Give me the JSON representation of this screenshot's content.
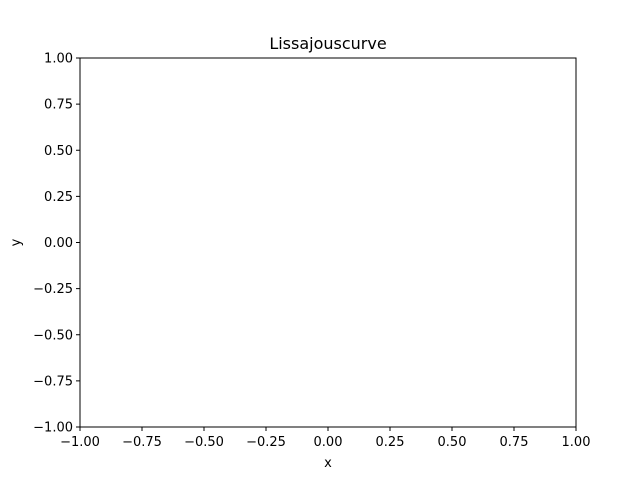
{
  "chart_data": {
    "type": "line",
    "title": "Lissajouscurve",
    "xlabel": "x",
    "ylabel": "y",
    "xlim": [
      -1.0,
      1.0
    ],
    "ylim": [
      -1.0,
      1.0
    ],
    "xticks": [
      -1.0,
      -0.75,
      -0.5,
      -0.25,
      0.0,
      0.25,
      0.5,
      0.75,
      1.0
    ],
    "yticks": [
      -1.0,
      -0.75,
      -0.5,
      -0.25,
      0.0,
      0.25,
      0.5,
      0.75,
      1.0
    ],
    "xtick_labels": [
      "−1.00",
      "−0.75",
      "−0.50",
      "−0.25",
      "0.00",
      "0.25",
      "0.50",
      "0.75",
      "1.00"
    ],
    "ytick_labels": [
      "−1.00",
      "−0.75",
      "−0.50",
      "−0.25",
      "0.00",
      "0.25",
      "0.50",
      "0.75",
      "1.00"
    ],
    "grid": false,
    "series": [
      {
        "x": [],
        "y": []
      }
    ],
    "colors": {
      "axes": "#000000",
      "background": "#ffffff"
    }
  }
}
